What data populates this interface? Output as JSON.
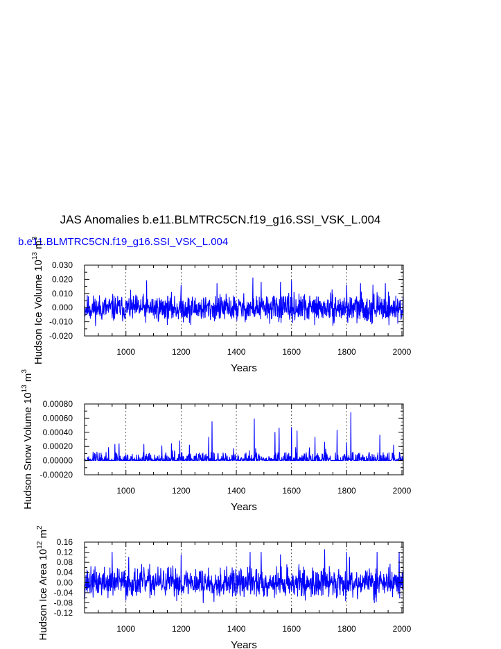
{
  "title": "JAS Anomalies b.e11.BLMTRC5CN.f19_g16.SSI_VSK_L.004",
  "subtitle": "b.e11.BLMTRC5CN.f19_g16.SSI_VSK_L.004",
  "colors": {
    "series": "#0000ff",
    "axes": "#000000",
    "grid": "#000000"
  },
  "chart_data": [
    {
      "type": "line",
      "name": "ice-volume",
      "ylabel": {
        "text": "Hudson Ice Volume 10",
        "exp1": "13",
        "unit": " m",
        "exp2": "3"
      },
      "xlabel": "Years",
      "xlim": [
        850,
        2005
      ],
      "ylim": [
        -0.02,
        0.03
      ],
      "xticks": [
        1000,
        1200,
        1400,
        1600,
        1800,
        2000
      ],
      "xtick_labels": [
        "1000",
        "1200",
        "1400",
        "1600",
        "1800",
        "2000"
      ],
      "yticks": [
        -0.02,
        -0.01,
        0.0,
        0.01,
        0.02,
        0.03
      ],
      "ytick_labels": [
        "-0.020",
        "-0.010",
        "0.000",
        "0.010",
        "0.020",
        "0.030"
      ],
      "grid": "dashed vertical at major x ticks",
      "series_style": {
        "kind": "anomaly",
        "base": -0.0005,
        "amp": 0.0045,
        "min": -0.013,
        "max": 0.021,
        "seed": 11,
        "peaks": [
          [
            1075,
            0.019
          ],
          [
            1200,
            0.016
          ],
          [
            1330,
            0.017
          ],
          [
            1460,
            0.021
          ],
          [
            1490,
            0.018
          ],
          [
            1560,
            0.018
          ],
          [
            1600,
            0.019
          ],
          [
            1800,
            0.016
          ],
          [
            1850,
            0.017
          ],
          [
            1895,
            0.016
          ],
          [
            1940,
            0.017
          ],
          [
            1150,
            -0.012
          ],
          [
            1235,
            -0.012
          ],
          [
            1985,
            -0.011
          ]
        ]
      }
    },
    {
      "type": "line",
      "name": "snow-volume",
      "ylabel": {
        "text": "Hudson Snow Volume 10",
        "exp1": "13",
        "unit": " m",
        "exp2": "3"
      },
      "xlabel": "Years",
      "xlim": [
        850,
        2005
      ],
      "ylim": [
        -0.0002,
        0.0008
      ],
      "xticks": [
        1000,
        1200,
        1400,
        1600,
        1800,
        2000
      ],
      "xtick_labels": [
        "1000",
        "1200",
        "1400",
        "1600",
        "1800",
        "2000"
      ],
      "yticks": [
        -0.0002,
        0.0,
        0.0002,
        0.0004,
        0.0006,
        0.0008
      ],
      "ytick_labels": [
        "-0.00020",
        "0.00000",
        "0.00020",
        "0.00040",
        "0.00060",
        "0.00080"
      ],
      "grid": "dashed vertical at major x ticks",
      "series_style": {
        "kind": "spiky",
        "base": 0.0,
        "amp": 3e-05,
        "min": 0.0,
        "max": 0.00068,
        "seed": 23,
        "peaks": [
          [
            895,
            0.00012
          ],
          [
            960,
            0.00023
          ],
          [
            975,
            0.00024
          ],
          [
            1065,
            0.00023
          ],
          [
            1130,
            0.00021
          ],
          [
            1165,
            0.00024
          ],
          [
            1195,
            0.00028
          ],
          [
            1230,
            0.00022
          ],
          [
            1300,
            0.00033
          ],
          [
            1312,
            0.00055
          ],
          [
            1390,
            0.00017
          ],
          [
            1465,
            0.00059
          ],
          [
            1540,
            0.0004
          ],
          [
            1555,
            0.00046
          ],
          [
            1600,
            0.00047
          ],
          [
            1620,
            0.00042
          ],
          [
            1685,
            0.00033
          ],
          [
            1720,
            0.00026
          ],
          [
            1765,
            0.00043
          ],
          [
            1800,
            0.00025
          ],
          [
            1815,
            0.00068
          ],
          [
            1920,
            0.00036
          ],
          [
            1970,
            0.00022
          ]
        ]
      }
    },
    {
      "type": "line",
      "name": "ice-area",
      "ylabel": {
        "text": "Hudson Ice Area 10",
        "exp1": "12",
        "unit": " m",
        "exp2": "2"
      },
      "xlabel": "Years",
      "xlim": [
        850,
        2005
      ],
      "ylim": [
        -0.12,
        0.16
      ],
      "xticks": [
        1000,
        1200,
        1400,
        1600,
        1800,
        2000
      ],
      "xtick_labels": [
        "1000",
        "1200",
        "1400",
        "1600",
        "1800",
        "2000"
      ],
      "yticks": [
        -0.12,
        -0.08,
        -0.04,
        0.0,
        0.04,
        0.08,
        0.12,
        0.16
      ],
      "ytick_labels": [
        "-0.12",
        "-0.08",
        "-0.04",
        "0.00",
        "0.04",
        "0.08",
        "0.12",
        "0.16"
      ],
      "grid": "dashed vertical at major x ticks",
      "series_style": {
        "kind": "anomaly",
        "base": 0.0,
        "amp": 0.028,
        "min": -0.075,
        "max": 0.13,
        "seed": 37,
        "peaks": [
          [
            950,
            0.12
          ],
          [
            1010,
            0.1
          ],
          [
            1200,
            0.11
          ],
          [
            1280,
            0.1
          ],
          [
            1450,
            0.12
          ],
          [
            1490,
            0.12
          ],
          [
            1560,
            0.11
          ],
          [
            1720,
            0.13
          ],
          [
            1800,
            0.12
          ],
          [
            1810,
            0.1
          ],
          [
            1910,
            0.12
          ],
          [
            1990,
            0.12
          ],
          [
            1000,
            -0.07
          ],
          [
            1280,
            -0.08
          ],
          [
            1650,
            -0.07
          ],
          [
            1900,
            -0.08
          ]
        ]
      }
    }
  ]
}
